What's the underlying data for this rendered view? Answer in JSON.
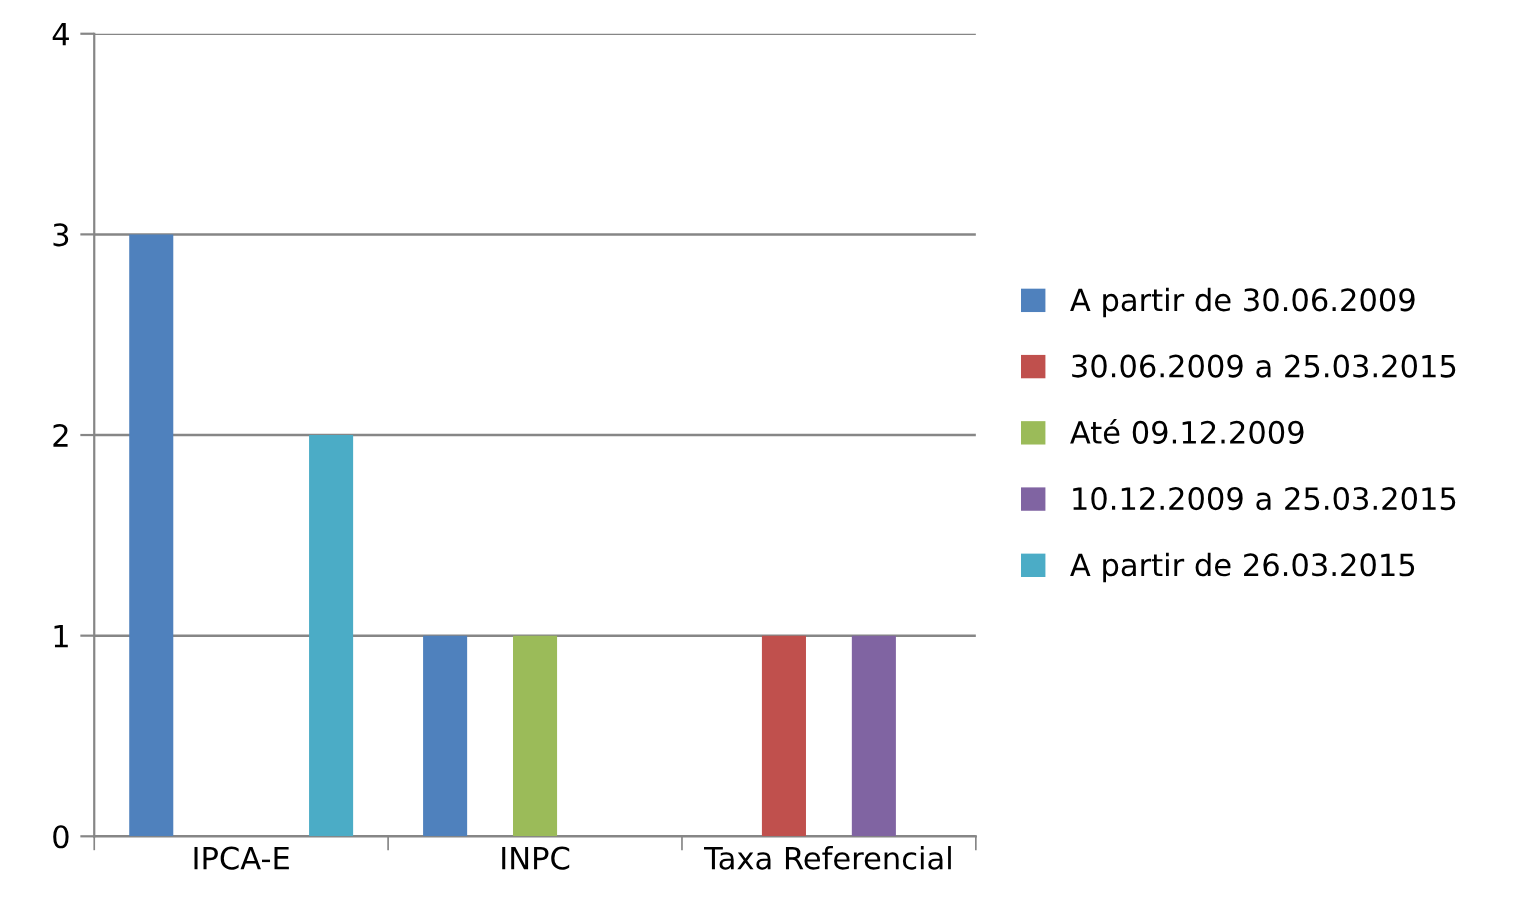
{
  "chart_data": {
    "type": "bar",
    "categories": [
      "IPCA-E",
      "INPC",
      "Taxa Referencial"
    ],
    "series": [
      {
        "name": "A partir de 30.06.2009",
        "color": "#4f81bd",
        "values": [
          3,
          1,
          null
        ]
      },
      {
        "name": "30.06.2009 a 25.03.2015",
        "color": "#c0504d",
        "values": [
          null,
          null,
          1
        ]
      },
      {
        "name": "Até 09.12.2009",
        "color": "#9bbb59",
        "values": [
          null,
          1,
          null
        ]
      },
      {
        "name": "10.12.2009 a 25.03.2015",
        "color": "#8064a2",
        "values": [
          null,
          null,
          1
        ]
      },
      {
        "name": "A partir de 26.03.2015",
        "color": "#4bacc6",
        "values": [
          2,
          null,
          null
        ]
      }
    ],
    "ylim": [
      0,
      4
    ],
    "yticks": [
      0,
      1,
      2,
      3,
      4
    ],
    "grid": "y",
    "legend": "right"
  }
}
